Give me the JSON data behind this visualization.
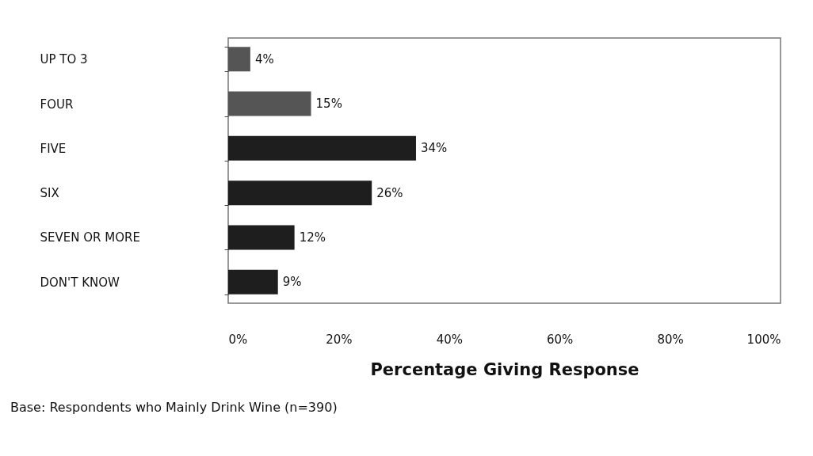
{
  "chart_data": {
    "type": "bar",
    "orientation": "horizontal",
    "xlabel": "Percentage Giving Response",
    "categories": [
      "UP TO 3",
      "FOUR",
      "FIVE",
      "SIX",
      "SEVEN OR MORE",
      "DON'T KNOW"
    ],
    "values": [
      4,
      15,
      34,
      26,
      12,
      9
    ],
    "colors": [
      "#555555",
      "#555555",
      "#1e1e1e",
      "#1e1e1e",
      "#1e1e1e",
      "#1e1e1e"
    ],
    "value_labels": [
      "4%",
      "15%",
      "34%",
      "26%",
      "12%",
      "9%"
    ],
    "xlim": [
      0,
      100
    ],
    "xticks": [
      {
        "value": 0,
        "label": "0%"
      },
      {
        "value": 20,
        "label": "20%"
      },
      {
        "value": 40,
        "label": "40%"
      },
      {
        "value": 60,
        "label": "60%"
      },
      {
        "value": 80,
        "label": "80%"
      },
      {
        "value": 100,
        "label": "100%"
      }
    ],
    "annotations": [
      "Base: Respondents who Mainly Drink Wine (n=390)"
    ]
  }
}
